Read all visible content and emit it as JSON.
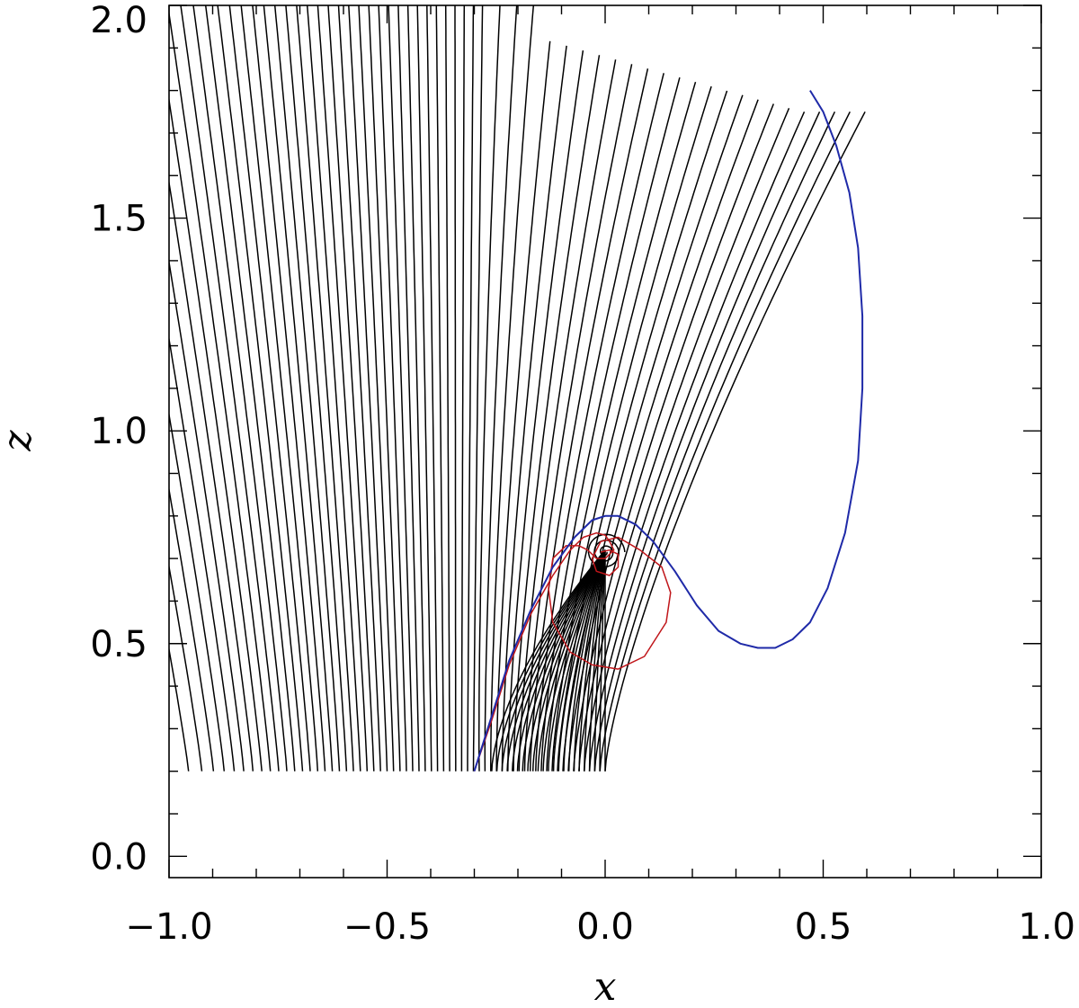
{
  "chart_data": {
    "type": "line",
    "title": "",
    "xlabel": "x",
    "ylabel": "z",
    "xlim": [
      -1.0,
      1.0
    ],
    "ylim": [
      -0.05,
      2.0
    ],
    "xticks": [
      "−1.0",
      "−0.5",
      "0.0",
      "0.5",
      "1.0"
    ],
    "yticks": [
      "0.0",
      "0.5",
      "1.0",
      "1.5",
      "2.0"
    ],
    "xtick_values": [
      -1.0,
      -0.5,
      0.0,
      0.5,
      1.0
    ],
    "ytick_values": [
      0.0,
      0.5,
      1.0,
      1.5,
      2.0
    ],
    "grid": false,
    "legend": "none",
    "colors": {
      "field_lines": "#000000",
      "red_curve": "#c0161a",
      "blue_curve": "#1f2aa8"
    },
    "field_lines": {
      "base_z": 0.2,
      "base_x_start": -1.0,
      "base_x_end": 0.0,
      "count": 64
    },
    "series": [
      {
        "color": "#c0161a",
        "x": [
          -0.3,
          -0.26,
          -0.22,
          -0.17,
          -0.12,
          -0.08,
          -0.05,
          -0.02,
          0.0,
          0.01,
          0.02,
          0.0,
          -0.02,
          -0.03,
          -0.04,
          -0.06,
          -0.09,
          -0.12,
          -0.13,
          -0.12,
          -0.08,
          -0.03,
          0.03,
          0.09,
          0.14,
          0.15,
          0.13,
          0.08,
          0.03,
          -0.01,
          -0.03,
          -0.02,
          0.01,
          0.03,
          0.03,
          0.01,
          -0.01
        ],
        "y": [
          0.2,
          0.32,
          0.45,
          0.57,
          0.66,
          0.72,
          0.75,
          0.76,
          0.755,
          0.74,
          0.72,
          0.7,
          0.7,
          0.71,
          0.72,
          0.73,
          0.73,
          0.7,
          0.63,
          0.55,
          0.48,
          0.45,
          0.44,
          0.47,
          0.55,
          0.62,
          0.68,
          0.72,
          0.75,
          0.74,
          0.7,
          0.67,
          0.66,
          0.68,
          0.71,
          0.72,
          0.715
        ]
      },
      {
        "color": "#1f2aa8",
        "x": [
          -0.3,
          -0.26,
          -0.22,
          -0.17,
          -0.12,
          -0.07,
          -0.03,
          0.0,
          0.03,
          0.07,
          0.11,
          0.16,
          0.21,
          0.26,
          0.31,
          0.35,
          0.39,
          0.43,
          0.47,
          0.51,
          0.55,
          0.58,
          0.59,
          0.59,
          0.58,
          0.56,
          0.53,
          0.5,
          0.47
        ],
        "y": [
          0.2,
          0.33,
          0.46,
          0.58,
          0.68,
          0.75,
          0.79,
          0.8,
          0.8,
          0.78,
          0.74,
          0.67,
          0.59,
          0.53,
          0.5,
          0.49,
          0.49,
          0.51,
          0.55,
          0.63,
          0.76,
          0.93,
          1.1,
          1.27,
          1.43,
          1.56,
          1.67,
          1.75,
          1.8
        ]
      }
    ]
  }
}
